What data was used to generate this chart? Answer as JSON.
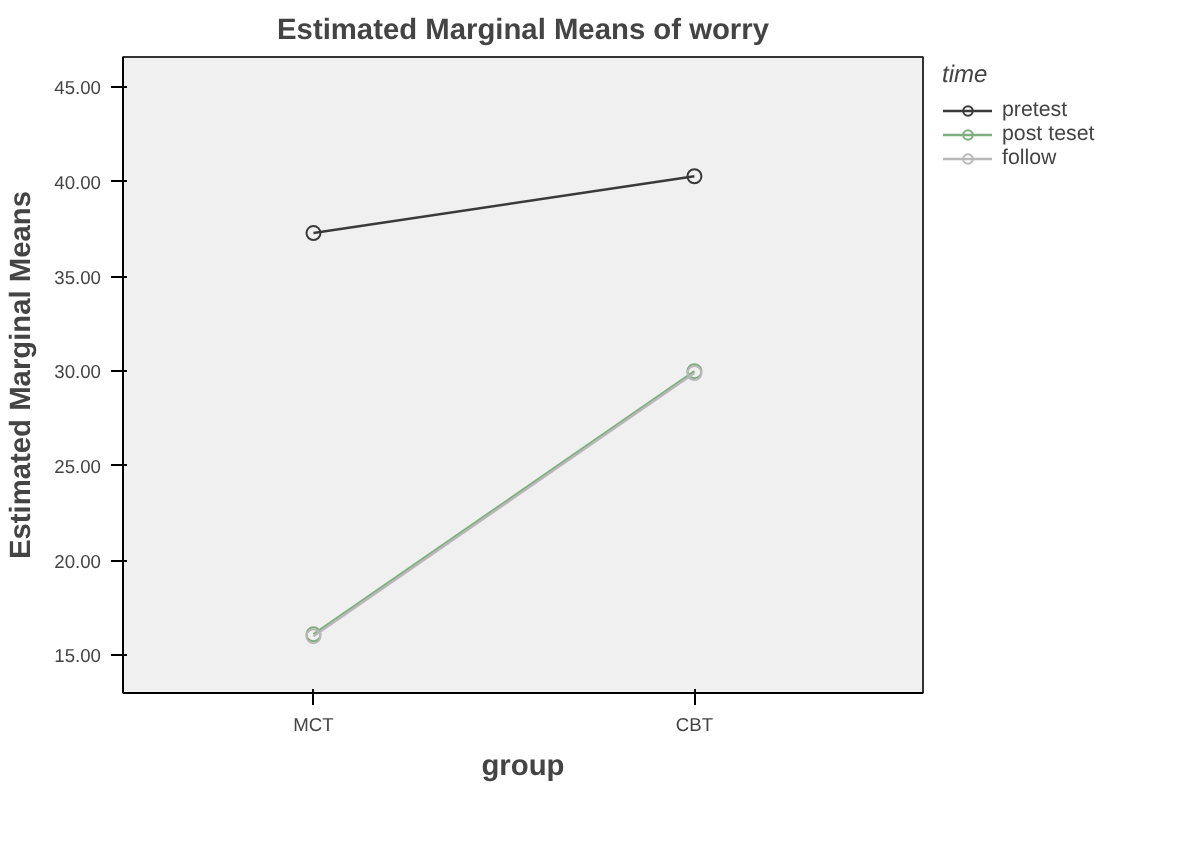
{
  "chart_data": {
    "type": "line",
    "title": "Estimated Marginal Means of worry",
    "xlabel": "group",
    "ylabel": "Estimated Marginal Means",
    "categories": [
      "MCT",
      "CBT"
    ],
    "series": [
      {
        "name": "pretest",
        "color": "#3a3a3a",
        "values": [
          37.3,
          40.3
        ]
      },
      {
        "name": "post teset",
        "color": "#7fae7f",
        "values": [
          16.1,
          30.0
        ]
      },
      {
        "name": "follow",
        "color": "#b8b8b8",
        "values": [
          16.0,
          29.9
        ]
      }
    ],
    "legend_title": "time",
    "legend": "top right",
    "marker": "circle",
    "grid": false,
    "ylim": [
      13.0,
      46.6
    ],
    "yticks": [
      {
        "value": 15,
        "label": "15.00"
      },
      {
        "value": 20,
        "label": "20.00"
      },
      {
        "value": 25,
        "label": "25.00"
      },
      {
        "value": 30,
        "label": "30.00"
      },
      {
        "value": 35,
        "label": "35.00"
      },
      {
        "value": 40,
        "label": "40.00"
      },
      {
        "value": 45,
        "label": "45.00"
      }
    ]
  }
}
